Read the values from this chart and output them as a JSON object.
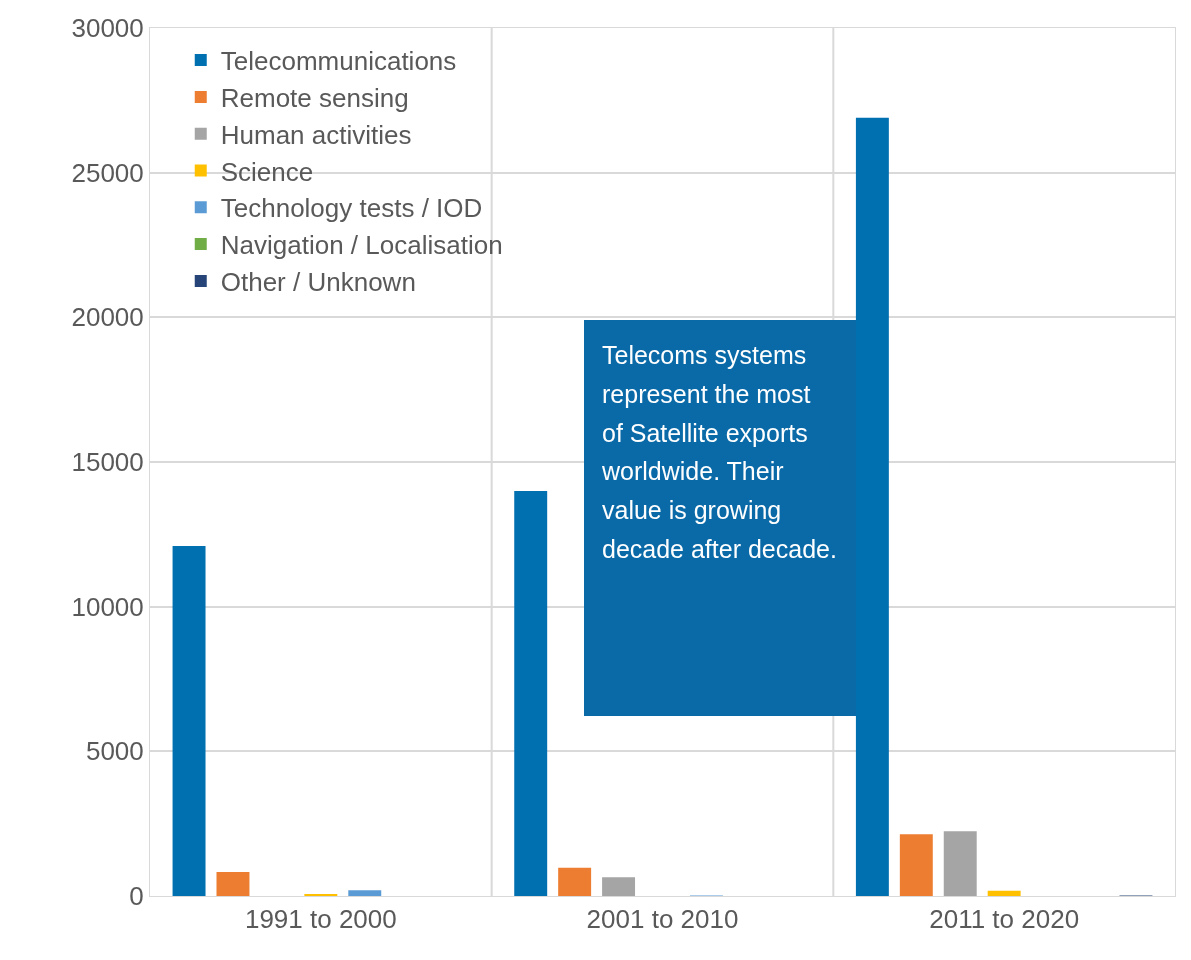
{
  "chart_data": {
    "type": "bar",
    "categories": [
      "1991 to 2000",
      "2001 to 2010",
      "2011 to 2020"
    ],
    "series": [
      {
        "name": "Telecommunications",
        "color": "#0070b0",
        "values": [
          12100,
          14000,
          26900
        ]
      },
      {
        "name": "Remote sensing",
        "color": "#ed7d31",
        "values": [
          830,
          980,
          2130
        ]
      },
      {
        "name": "Human activities",
        "color": "#a5a5a5",
        "values": [
          0,
          650,
          2240
        ]
      },
      {
        "name": "Science",
        "color": "#ffc000",
        "values": [
          70,
          0,
          180
        ]
      },
      {
        "name": "Technology tests / IOD",
        "color": "#5b9bd5",
        "values": [
          200,
          20,
          0
        ]
      },
      {
        "name": "Navigation / Localisation",
        "color": "#70ad47",
        "values": [
          0,
          0,
          0
        ]
      },
      {
        "name": "Other / Unknown",
        "color": "#264478",
        "values": [
          0,
          0,
          20
        ]
      }
    ],
    "ylim": [
      0,
      30000
    ],
    "yticks": [
      0,
      5000,
      10000,
      15000,
      20000,
      25000,
      30000
    ],
    "grid": true,
    "legend": "top left",
    "annotations": [
      "Telecoms systems represent the most of Satellite exports worldwide. Their value is growing decade after decade."
    ]
  }
}
